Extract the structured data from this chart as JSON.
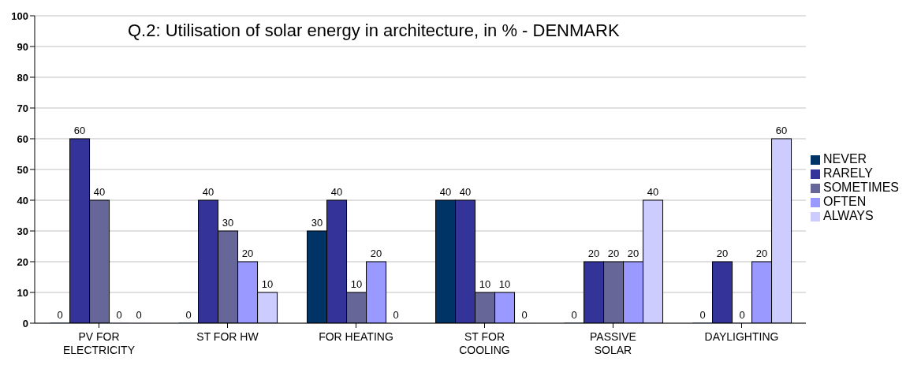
{
  "chart_data": {
    "type": "bar",
    "title": "Q.2: Utilisation of solar energy in architecture, in % - DENMARK",
    "categories": [
      "PV FOR ELECTRICITY",
      "ST FOR HW",
      "FOR HEATING",
      "ST FOR COOLING",
      "PASSIVE SOLAR",
      "DAYLIGHTING"
    ],
    "series": [
      {
        "name": "NEVER",
        "color": "#003366",
        "values": [
          0,
          0,
          30,
          40,
          0,
          0
        ]
      },
      {
        "name": "RARELY",
        "color": "#333399",
        "values": [
          60,
          40,
          40,
          40,
          20,
          20
        ]
      },
      {
        "name": "SOMETIMES",
        "color": "#666699",
        "values": [
          40,
          30,
          10,
          10,
          20,
          0
        ]
      },
      {
        "name": "OFTEN",
        "color": "#9999ff",
        "values": [
          0,
          20,
          20,
          10,
          20,
          20
        ]
      },
      {
        "name": "ALWAYS",
        "color": "#ccccff",
        "values": [
          0,
          10,
          0,
          0,
          40,
          60
        ]
      }
    ],
    "ylim": [
      0,
      100
    ],
    "yticks": [
      0,
      10,
      20,
      30,
      40,
      50,
      60,
      70,
      80,
      90,
      100
    ],
    "grid": "y",
    "legend": "right",
    "data_labels": true
  }
}
